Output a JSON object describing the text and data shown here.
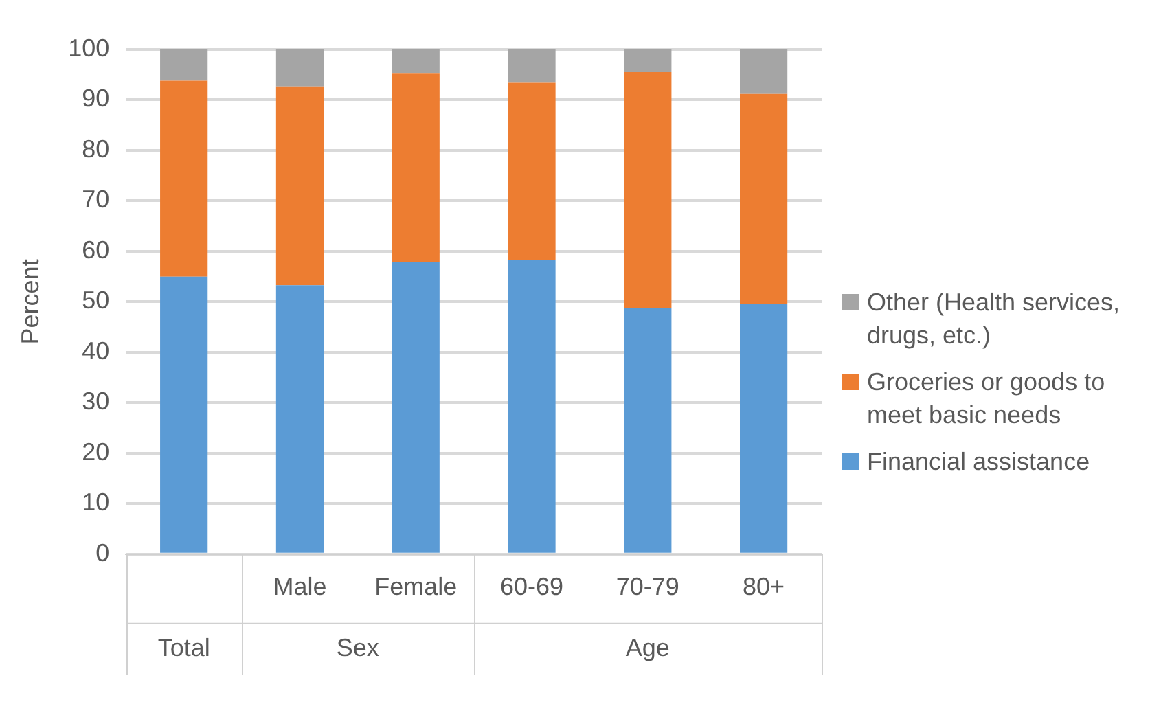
{
  "chart_data": {
    "type": "bar",
    "stacked": true,
    "ylabel": "Percent",
    "categories": [
      null,
      "Male",
      "Female",
      "60-69",
      "70-79",
      "80+"
    ],
    "annotations": [
      "Total",
      "Sex",
      "Age"
    ],
    "series": [
      {
        "name": "Financial assistance",
        "color": "#5b9bd5",
        "values": [
          55.0,
          53.3,
          57.8,
          58.3,
          48.7,
          49.6
        ]
      },
      {
        "name": "Groceries or goods to meet basic needs",
        "color": "#ed7d31",
        "values": [
          38.8,
          39.4,
          37.4,
          35.1,
          46.8,
          41.6
        ]
      },
      {
        "name": "Other (Health services, drugs, etc.)",
        "color": "#a5a5a5",
        "values": [
          6.2,
          7.3,
          4.8,
          6.6,
          4.5,
          8.8
        ]
      }
    ],
    "ylim": [
      0,
      100
    ],
    "yticks": [
      0,
      10,
      20,
      30,
      40,
      50,
      60,
      70,
      80,
      90,
      100
    ],
    "grid": "y",
    "legend": "right"
  }
}
